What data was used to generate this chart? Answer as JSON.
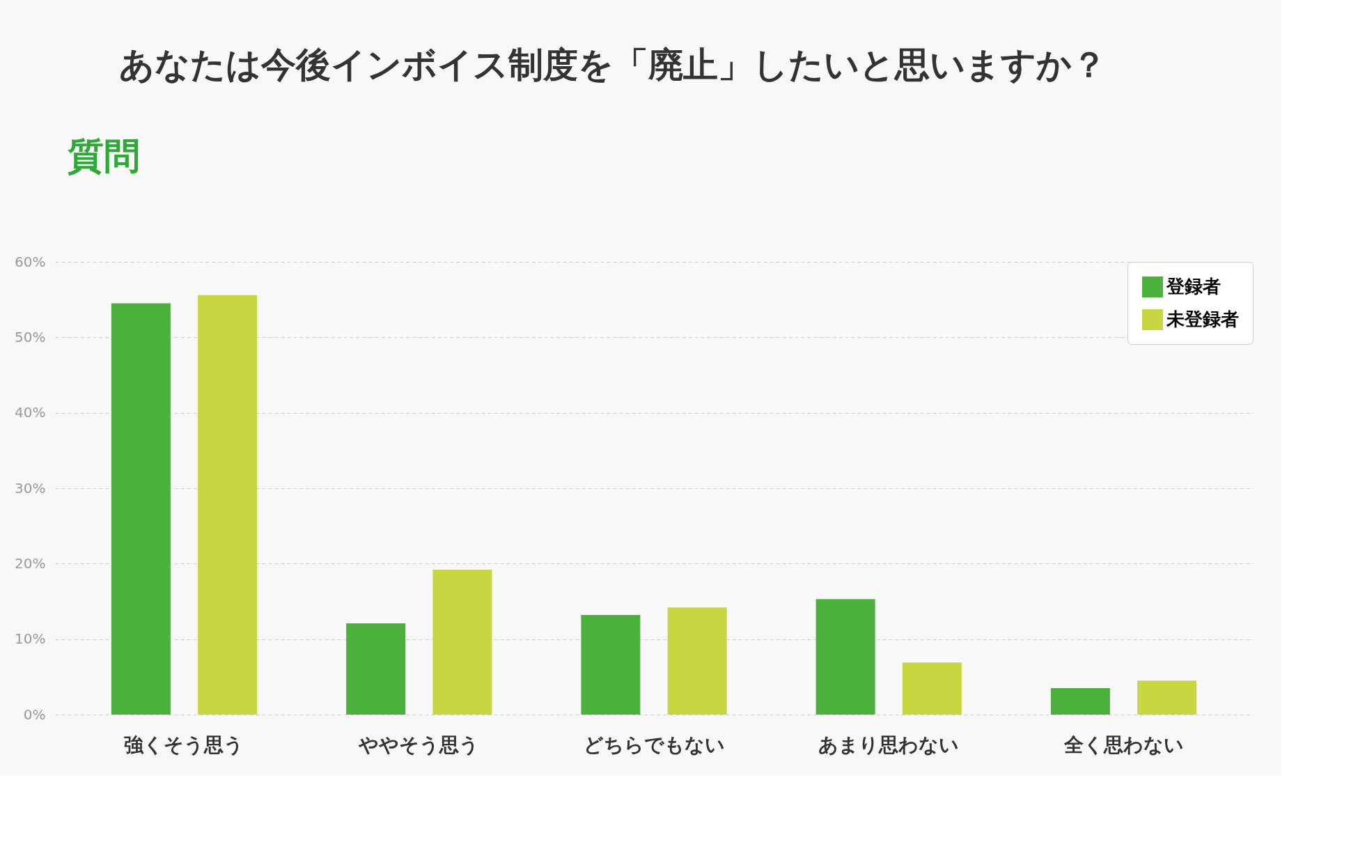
{
  "chart_data": {
    "type": "bar",
    "title": "あなたは今後インボイス制度を「廃止」したいと思いますか？",
    "annotations": [
      "質問"
    ],
    "categories": [
      "強くそう思う",
      "ややそう思う",
      "どちらでもない",
      "あまり思わない",
      "全く思わない"
    ],
    "series": [
      {
        "name": "登録者",
        "color": "#4cb03c",
        "values": [
          54.5,
          12.1,
          13.2,
          15.3,
          3.5
        ]
      },
      {
        "name": "未登録者",
        "color": "#c8d642",
        "values": [
          55.6,
          19.2,
          14.2,
          6.9,
          4.5
        ]
      }
    ],
    "ylim": [
      0,
      60
    ],
    "yticks": [
      {
        "value": 0,
        "label": "0%"
      },
      {
        "value": 10,
        "label": "10%"
      },
      {
        "value": 20,
        "label": "20%"
      },
      {
        "value": 30,
        "label": "30%"
      },
      {
        "value": 40,
        "label": "40%"
      },
      {
        "value": 50,
        "label": "50%"
      },
      {
        "value": 60,
        "label": "60%"
      }
    ],
    "grid": "y",
    "legend": "top right"
  }
}
